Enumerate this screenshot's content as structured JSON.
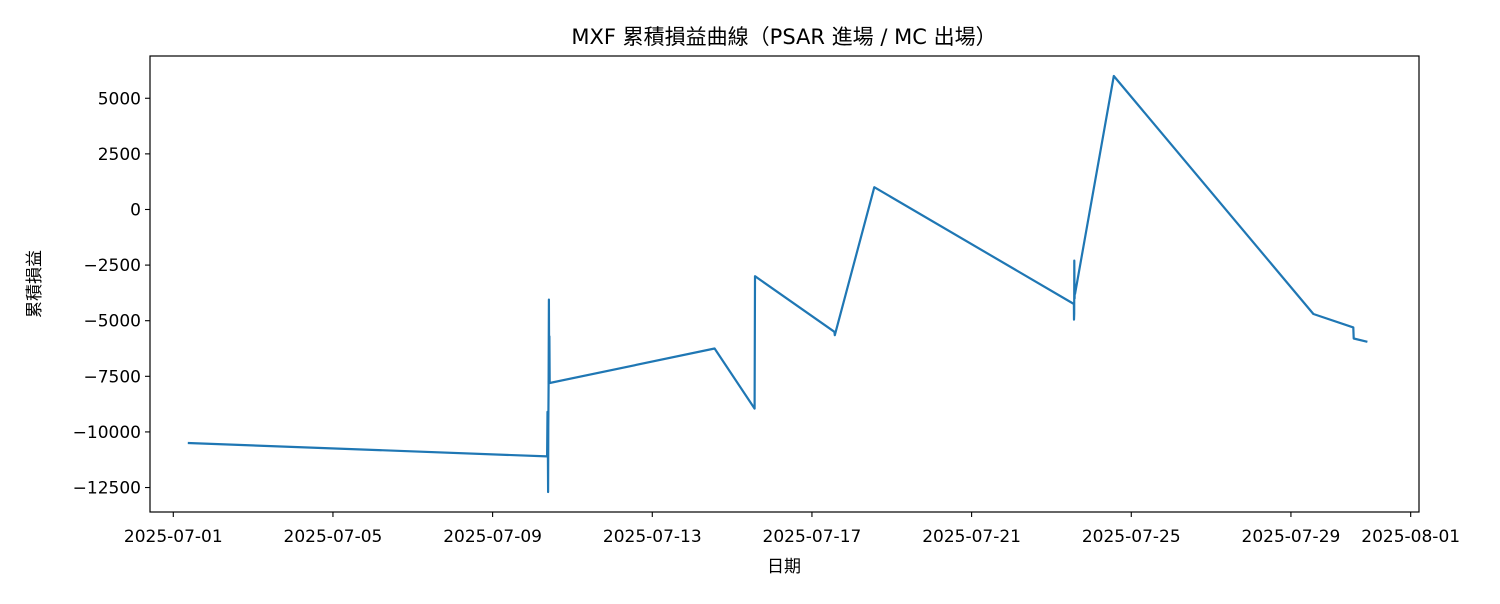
{
  "chart_data": {
    "type": "line",
    "title": "MXF 累積損益曲線（PSAR 進場 / MC 出場）",
    "xlabel": "日期",
    "ylabel": "累積損益",
    "x_ticks": [
      "2025-07-01",
      "2025-07-05",
      "2025-07-09",
      "2025-07-13",
      "2025-07-17",
      "2025-07-21",
      "2025-07-25",
      "2025-07-29",
      "2025-08-01"
    ],
    "y_ticks": [
      -12500,
      -10000,
      -7500,
      -5000,
      -2500,
      0,
      2500,
      5000
    ],
    "xlim": [
      "2025-06-30T10:00",
      "2025-08-01T05:00"
    ],
    "ylim": [
      -13600,
      6900
    ],
    "grid": false,
    "legend": "none",
    "color": "#1f77b4",
    "series": [
      {
        "x": [
          "2025-07-01T08:45",
          "2025-07-10T08:45",
          "2025-07-10T09:00",
          "2025-07-10T09:10",
          "2025-07-10T09:20",
          "2025-07-10T09:30",
          "2025-07-10T09:40",
          "2025-07-10T09:50",
          "2025-07-10T10:00",
          "2025-07-10T10:10",
          "2025-07-10T10:20",
          "2025-07-14T13:30",
          "2025-07-15T13:30",
          "2025-07-15T13:45",
          "2025-07-17T13:30",
          "2025-07-17T13:45",
          "2025-07-18T13:30",
          "2025-07-23T13:30",
          "2025-07-23T13:35",
          "2025-07-23T13:40",
          "2025-07-23T13:45",
          "2025-07-23T13:50",
          "2025-07-23T13:55",
          "2025-07-23T14:00",
          "2025-07-23T14:10",
          "2025-07-24T13:30",
          "2025-07-29T13:30",
          "2025-07-30T13:30",
          "2025-07-30T13:45",
          "2025-07-30T22:00"
        ],
        "y": [
          -10500,
          -11100,
          -9100,
          -10200,
          -12700,
          -9800,
          -7900,
          -4050,
          -7500,
          -5700,
          -7800,
          -6250,
          -8950,
          -3000,
          -5500,
          -5650,
          1000,
          -4250,
          -4950,
          -4700,
          -2300,
          -3100,
          -4000,
          -3500,
          -3800,
          6000,
          -4700,
          -5300,
          -5800,
          -5950
        ]
      }
    ]
  }
}
